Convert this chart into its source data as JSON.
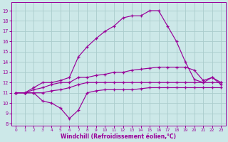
{
  "bg_color": "#cce8e8",
  "grid_color": "#aacccc",
  "line_color": "#990099",
  "xlabel": "Windchill (Refroidissement éolien,°C)",
  "xlim": [
    -0.5,
    23.5
  ],
  "ylim": [
    7.8,
    19.8
  ],
  "yticks": [
    8,
    9,
    10,
    11,
    12,
    13,
    14,
    15,
    16,
    17,
    18,
    19
  ],
  "xticks": [
    0,
    1,
    2,
    3,
    4,
    5,
    6,
    7,
    8,
    9,
    10,
    11,
    12,
    13,
    14,
    15,
    16,
    17,
    18,
    19,
    20,
    21,
    22,
    23
  ],
  "curves": [
    {
      "x": [
        0,
        1,
        2,
        3,
        4,
        5,
        6,
        7,
        8,
        9,
        10,
        11,
        12,
        13,
        14,
        15,
        16,
        17,
        18,
        19,
        20,
        21,
        22,
        23
      ],
      "y": [
        11,
        11,
        11,
        10.2,
        10.0,
        9.5,
        8.5,
        9.3,
        11.0,
        11.2,
        11.3,
        11.3,
        11.3,
        11.3,
        11.4,
        11.5,
        11.5,
        11.5,
        11.5,
        11.5,
        11.5,
        11.5,
        11.5,
        11.5
      ]
    },
    {
      "x": [
        0,
        1,
        2,
        3,
        4,
        5,
        6,
        7,
        8,
        9,
        10,
        11,
        12,
        13,
        14,
        15,
        16,
        17,
        18,
        19,
        20,
        21,
        22,
        23
      ],
      "y": [
        11,
        11,
        11,
        11,
        11.2,
        11.3,
        11.5,
        11.8,
        12.0,
        12.0,
        12.0,
        12.0,
        12.0,
        12.0,
        12.0,
        12.0,
        12.0,
        12.0,
        12.0,
        12.0,
        12.0,
        12.0,
        12.0,
        12.0
      ]
    },
    {
      "x": [
        0,
        1,
        2,
        3,
        4,
        5,
        6,
        7,
        8,
        9,
        10,
        11,
        12,
        13,
        14,
        15,
        16,
        17,
        18,
        19,
        20,
        21,
        22,
        23
      ],
      "y": [
        11,
        11,
        11.3,
        11.5,
        11.8,
        12.0,
        12.0,
        12.5,
        12.5,
        12.7,
        12.8,
        13.0,
        13.0,
        13.2,
        13.3,
        13.4,
        13.5,
        13.5,
        13.5,
        13.5,
        13.2,
        12.2,
        12.5,
        11.8
      ]
    },
    {
      "x": [
        0,
        1,
        2,
        3,
        4,
        5,
        6,
        7,
        8,
        9,
        10,
        11,
        12,
        13,
        14,
        15,
        16,
        17,
        18,
        19,
        20,
        21,
        22,
        23
      ],
      "y": [
        11,
        11,
        11.5,
        12.0,
        12.0,
        12.2,
        12.5,
        14.5,
        15.5,
        16.3,
        17.0,
        17.5,
        18.3,
        18.5,
        18.5,
        19.0,
        19.0,
        17.5,
        16.0,
        14.0,
        12.3,
        12.0,
        12.5,
        12.0
      ]
    }
  ]
}
